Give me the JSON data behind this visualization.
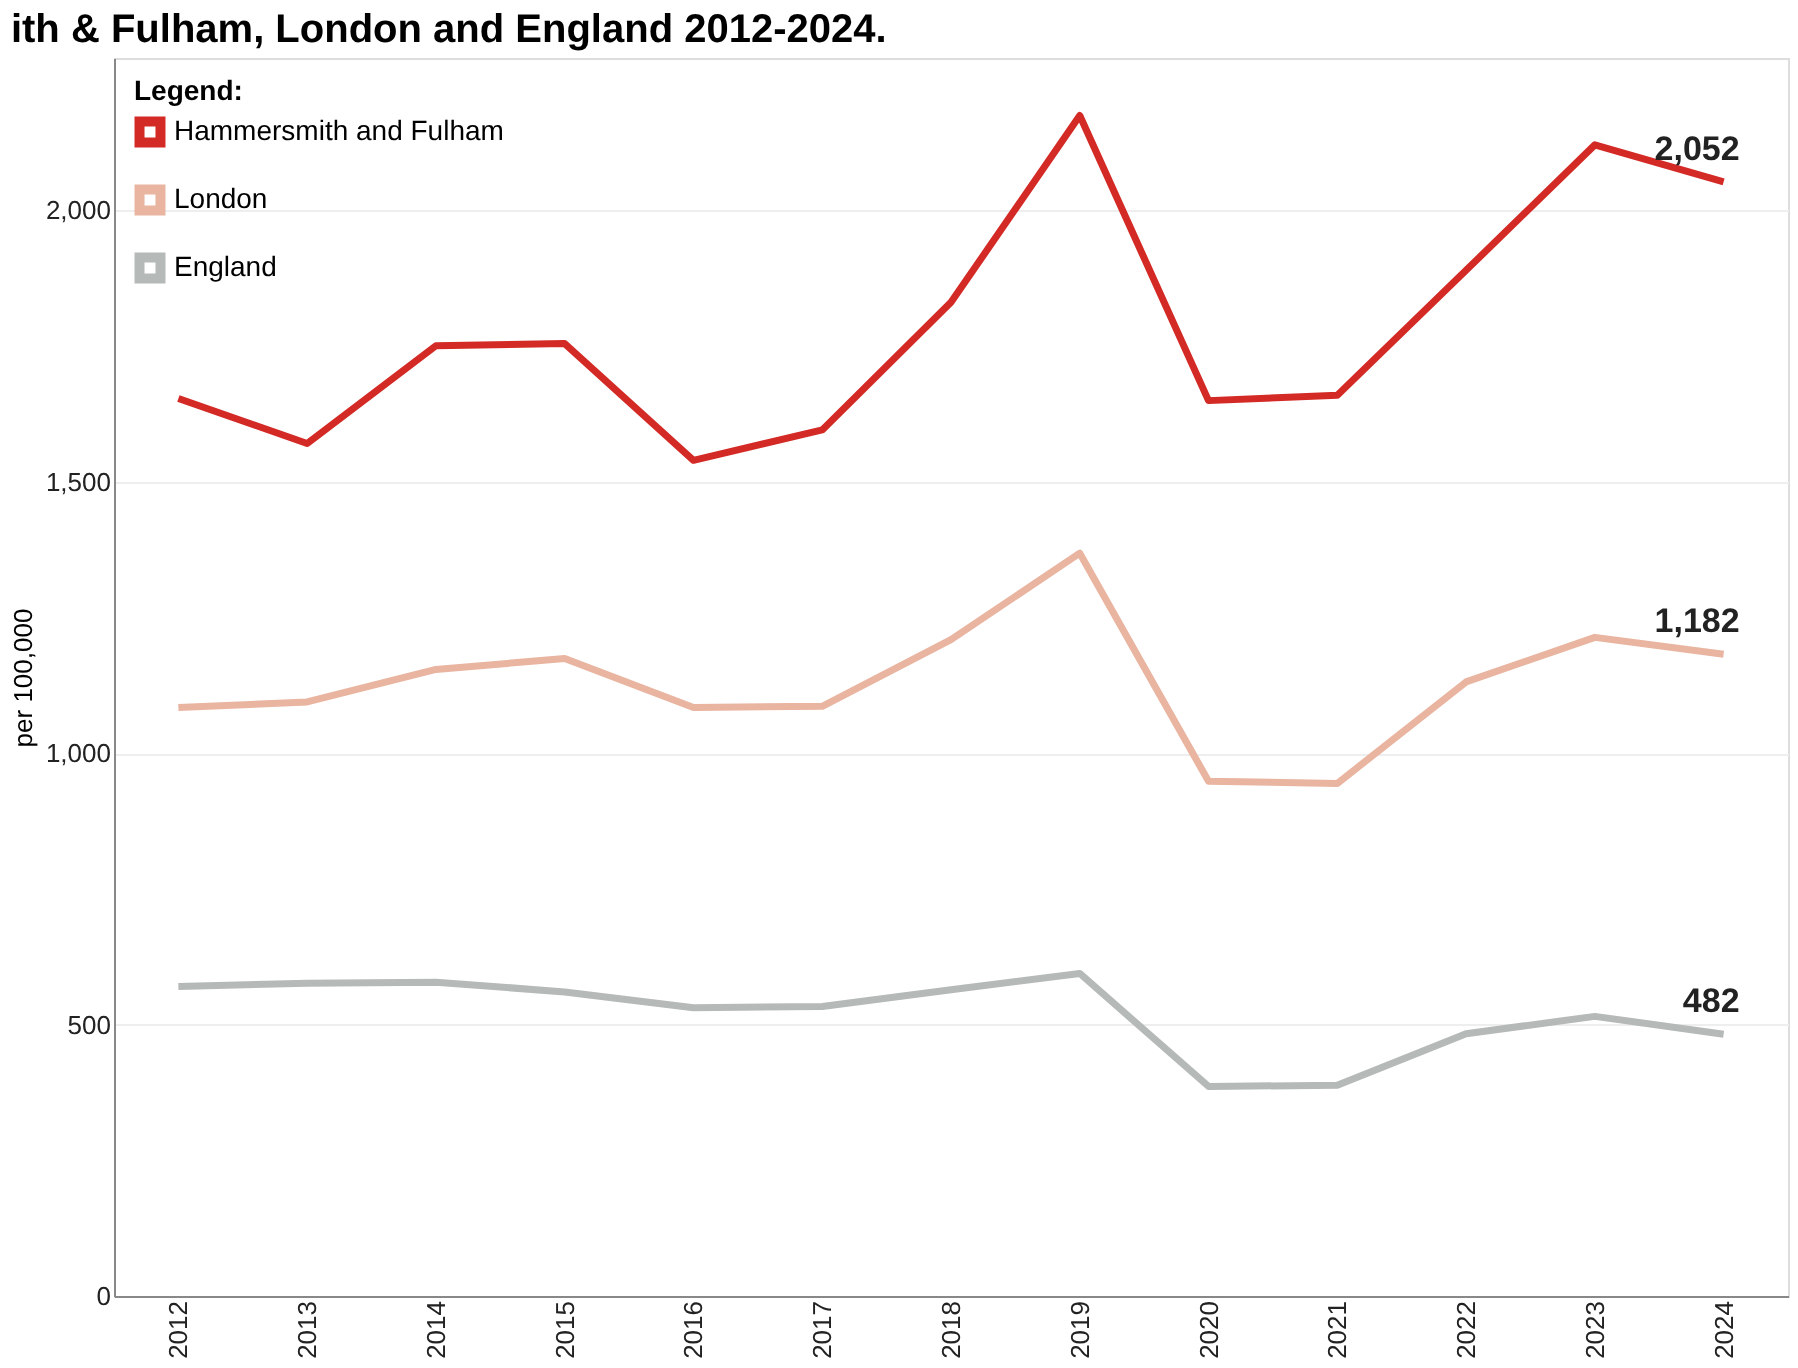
{
  "chart_data": {
    "type": "line",
    "title": "ith & Fulham, London and England 2012-2024.",
    "ylabel": "per 100,000",
    "legend_title": "Legend:",
    "legend": "top left",
    "grid": "y",
    "marker": "none",
    "line_style": "solid",
    "categories": [
      "2012",
      "2013",
      "2014",
      "2015",
      "2016",
      "2017",
      "2018",
      "2019",
      "2020",
      "2021",
      "2022",
      "2023",
      "2024"
    ],
    "ylim": [
      0,
      2280
    ],
    "yticks": [
      0,
      500,
      {
        "value": 1000,
        "label": "1,000"
      },
      {
        "value": 1500,
        "label": "1,500"
      },
      {
        "value": 2000,
        "label": "2,000"
      }
    ],
    "series": [
      {
        "name": "Hammersmith and Fulham",
        "color": "#d42a26",
        "values": [
          1653,
          1570,
          1750,
          1754,
          1539,
          1595,
          1830,
          2174,
          1649,
          1659,
          1889,
          2120,
          2052
        ],
        "value_labels": [
          null,
          null,
          null,
          null,
          null,
          null,
          null,
          null,
          null,
          null,
          null,
          null,
          "2,052"
        ]
      },
      {
        "name": "London",
        "color": "#e9b4a0",
        "values": [
          1084,
          1094,
          1154,
          1174,
          1084,
          1086,
          1209,
          1368,
          948,
          944,
          1131,
          1213,
          1182
        ],
        "value_labels": [
          null,
          null,
          null,
          null,
          null,
          null,
          null,
          null,
          null,
          null,
          null,
          null,
          "1,182"
        ]
      },
      {
        "name": "England",
        "color": "#b5b9b8",
        "values": [
          570,
          576,
          578,
          560,
          531,
          533,
          564,
          594,
          386,
          388,
          483,
          515,
          482
        ],
        "value_labels": [
          null,
          null,
          null,
          null,
          null,
          null,
          null,
          null,
          null,
          null,
          null,
          null,
          "482"
        ]
      }
    ]
  }
}
